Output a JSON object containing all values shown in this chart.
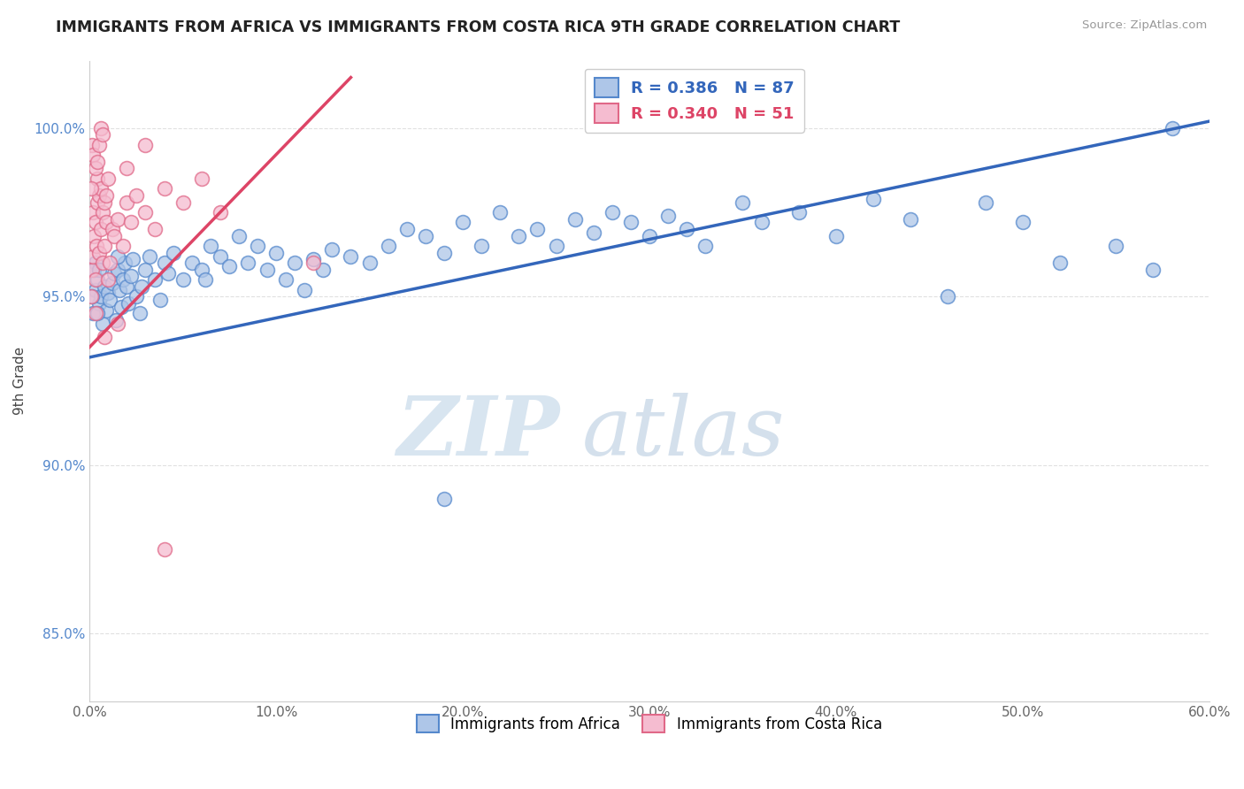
{
  "title": "IMMIGRANTS FROM AFRICA VS IMMIGRANTS FROM COSTA RICA 9TH GRADE CORRELATION CHART",
  "source": "Source: ZipAtlas.com",
  "xlabel": "",
  "ylabel": "9th Grade",
  "xlim": [
    0.0,
    60.0
  ],
  "ylim": [
    83.0,
    102.0
  ],
  "xtick_labels": [
    "0.0%",
    "10.0%",
    "20.0%",
    "30.0%",
    "40.0%",
    "50.0%",
    "60.0%"
  ],
  "xtick_values": [
    0,
    10,
    20,
    30,
    40,
    50,
    60
  ],
  "ytick_labels": [
    "85.0%",
    "90.0%",
    "95.0%",
    "100.0%"
  ],
  "ytick_values": [
    85.0,
    90.0,
    95.0,
    100.0
  ],
  "africa_color": "#aec6e8",
  "africa_edge": "#5588cc",
  "costarica_color": "#f5bcd0",
  "costarica_edge": "#e06888",
  "africa_R": 0.386,
  "africa_N": 87,
  "costarica_R": 0.34,
  "costarica_N": 51,
  "africa_line_color": "#3366bb",
  "costarica_line_color": "#dd4466",
  "watermark": "ZIPatlas",
  "watermark_color": "#ccdded",
  "grid_color": "#dddddd",
  "africa_scatter": [
    [
      0.2,
      94.5
    ],
    [
      0.3,
      95.2
    ],
    [
      0.3,
      96.0
    ],
    [
      0.4,
      95.5
    ],
    [
      0.5,
      94.8
    ],
    [
      0.6,
      95.0
    ],
    [
      0.7,
      94.2
    ],
    [
      0.8,
      95.3
    ],
    [
      0.9,
      94.6
    ],
    [
      1.0,
      95.1
    ],
    [
      1.1,
      94.9
    ],
    [
      1.2,
      95.4
    ],
    [
      1.3,
      95.7
    ],
    [
      1.4,
      94.3
    ],
    [
      1.5,
      95.8
    ],
    [
      1.6,
      95.2
    ],
    [
      1.7,
      94.7
    ],
    [
      1.8,
      95.5
    ],
    [
      1.9,
      96.0
    ],
    [
      2.0,
      95.3
    ],
    [
      2.1,
      94.8
    ],
    [
      2.2,
      95.6
    ],
    [
      2.3,
      96.1
    ],
    [
      2.5,
      95.0
    ],
    [
      2.7,
      94.5
    ],
    [
      3.0,
      95.8
    ],
    [
      3.2,
      96.2
    ],
    [
      3.5,
      95.5
    ],
    [
      3.8,
      94.9
    ],
    [
      4.0,
      96.0
    ],
    [
      4.2,
      95.7
    ],
    [
      4.5,
      96.3
    ],
    [
      5.0,
      95.5
    ],
    [
      5.5,
      96.0
    ],
    [
      6.0,
      95.8
    ],
    [
      6.5,
      96.5
    ],
    [
      7.0,
      96.2
    ],
    [
      7.5,
      95.9
    ],
    [
      8.0,
      96.8
    ],
    [
      8.5,
      96.0
    ],
    [
      9.0,
      96.5
    ],
    [
      9.5,
      95.8
    ],
    [
      10.0,
      96.3
    ],
    [
      10.5,
      95.5
    ],
    [
      11.0,
      96.0
    ],
    [
      11.5,
      95.2
    ],
    [
      12.0,
      96.1
    ],
    [
      12.5,
      95.8
    ],
    [
      13.0,
      96.4
    ],
    [
      14.0,
      96.2
    ],
    [
      15.0,
      96.0
    ],
    [
      16.0,
      96.5
    ],
    [
      17.0,
      97.0
    ],
    [
      18.0,
      96.8
    ],
    [
      19.0,
      96.3
    ],
    [
      20.0,
      97.2
    ],
    [
      21.0,
      96.5
    ],
    [
      22.0,
      97.5
    ],
    [
      23.0,
      96.8
    ],
    [
      24.0,
      97.0
    ],
    [
      25.0,
      96.5
    ],
    [
      26.0,
      97.3
    ],
    [
      27.0,
      96.9
    ],
    [
      28.0,
      97.5
    ],
    [
      29.0,
      97.2
    ],
    [
      30.0,
      96.8
    ],
    [
      31.0,
      97.4
    ],
    [
      32.0,
      97.0
    ],
    [
      33.0,
      96.5
    ],
    [
      35.0,
      97.8
    ],
    [
      36.0,
      97.2
    ],
    [
      38.0,
      97.5
    ],
    [
      40.0,
      96.8
    ],
    [
      42.0,
      97.9
    ],
    [
      44.0,
      97.3
    ],
    [
      46.0,
      95.0
    ],
    [
      48.0,
      97.8
    ],
    [
      50.0,
      97.2
    ],
    [
      52.0,
      96.0
    ],
    [
      55.0,
      96.5
    ],
    [
      57.0,
      95.8
    ],
    [
      58.0,
      100.0
    ],
    [
      0.15,
      95.0
    ],
    [
      0.25,
      95.8
    ],
    [
      1.5,
      96.2
    ],
    [
      2.8,
      95.3
    ],
    [
      6.2,
      95.5
    ],
    [
      0.4,
      94.5
    ],
    [
      0.5,
      95.8
    ],
    [
      19.0,
      89.0
    ]
  ],
  "costarica_scatter": [
    [
      0.1,
      95.0
    ],
    [
      0.15,
      95.8
    ],
    [
      0.2,
      96.2
    ],
    [
      0.2,
      97.5
    ],
    [
      0.25,
      96.8
    ],
    [
      0.3,
      95.5
    ],
    [
      0.3,
      97.2
    ],
    [
      0.35,
      96.5
    ],
    [
      0.4,
      97.8
    ],
    [
      0.4,
      98.5
    ],
    [
      0.5,
      98.0
    ],
    [
      0.5,
      96.3
    ],
    [
      0.6,
      97.0
    ],
    [
      0.6,
      98.2
    ],
    [
      0.7,
      97.5
    ],
    [
      0.7,
      96.0
    ],
    [
      0.8,
      97.8
    ],
    [
      0.8,
      96.5
    ],
    [
      0.9,
      97.2
    ],
    [
      0.9,
      98.0
    ],
    [
      1.0,
      95.5
    ],
    [
      1.1,
      96.0
    ],
    [
      1.2,
      97.0
    ],
    [
      1.3,
      96.8
    ],
    [
      1.5,
      97.3
    ],
    [
      1.8,
      96.5
    ],
    [
      2.0,
      97.8
    ],
    [
      2.2,
      97.2
    ],
    [
      2.5,
      98.0
    ],
    [
      3.0,
      97.5
    ],
    [
      3.5,
      97.0
    ],
    [
      4.0,
      98.2
    ],
    [
      5.0,
      97.8
    ],
    [
      6.0,
      98.5
    ],
    [
      7.0,
      97.5
    ],
    [
      0.15,
      99.5
    ],
    [
      0.2,
      99.2
    ],
    [
      0.3,
      98.8
    ],
    [
      0.4,
      99.0
    ],
    [
      0.5,
      99.5
    ],
    [
      0.6,
      100.0
    ],
    [
      0.7,
      99.8
    ],
    [
      1.0,
      98.5
    ],
    [
      2.0,
      98.8
    ],
    [
      3.0,
      99.5
    ],
    [
      0.3,
      94.5
    ],
    [
      1.5,
      94.2
    ],
    [
      0.8,
      93.8
    ],
    [
      4.0,
      87.5
    ],
    [
      12.0,
      96.0
    ],
    [
      0.1,
      98.2
    ]
  ],
  "africa_line_x": [
    0,
    60
  ],
  "africa_line_y": [
    93.2,
    100.2
  ],
  "costarica_line_x": [
    0,
    14
  ],
  "costarica_line_y": [
    93.5,
    101.5
  ]
}
